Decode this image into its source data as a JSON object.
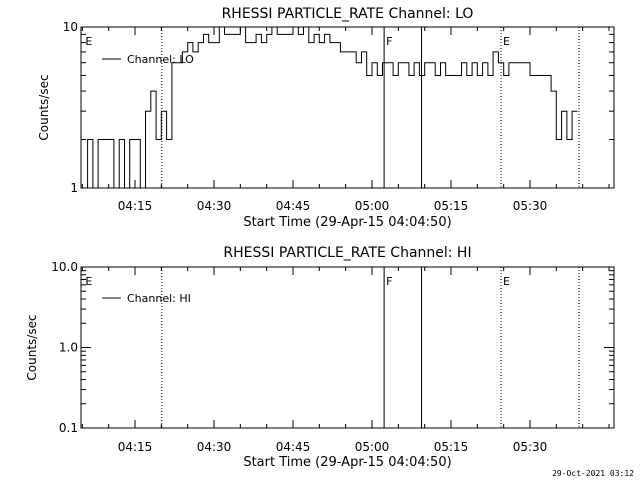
{
  "footer_timestamp": "29-Oct-2021 03:12",
  "chart_data": [
    {
      "type": "line",
      "title": "RHESSI PARTICLE_RATE Channel: LO",
      "xlabel": "Start Time (29-Apr-15 04:04:50)",
      "ylabel": "Counts/sec",
      "yscale": "log",
      "ylim": [
        1,
        10
      ],
      "yticks": [
        1,
        10
      ],
      "ytick_labels": [
        "1",
        "10"
      ],
      "xlim_min": [
        5,
        85
      ],
      "xticks_min": [
        15,
        30,
        45,
        60,
        75,
        90
      ],
      "xtick_labels": [
        "04:15",
        "04:30",
        "04:45",
        "05:00",
        "05:15",
        "05:30"
      ],
      "legend": "Channel: LO",
      "legend_position": "top-left",
      "markers": [
        {
          "t": 5.2,
          "label": "E",
          "style": "none"
        },
        {
          "t": 20.1,
          "label": "",
          "style": "dotted"
        },
        {
          "t": 62.3,
          "label": "F",
          "style": "solid"
        },
        {
          "t": 69.4,
          "label": "",
          "style": "solid"
        },
        {
          "t": 84.5,
          "label": "E",
          "style": "dotted"
        },
        {
          "t": 99.3,
          "label": "",
          "style": "dotted"
        }
      ],
      "series": [
        {
          "name": "Channel: LO",
          "x": [
            5,
            6,
            7,
            8,
            9,
            10,
            11,
            12,
            13,
            14,
            15,
            16,
            17,
            18,
            19,
            20,
            21,
            22,
            23,
            24,
            25,
            26,
            27,
            28,
            29,
            30,
            31,
            32,
            33,
            34,
            35,
            36,
            37,
            38,
            39,
            40,
            41,
            42,
            43,
            44,
            45,
            46,
            47,
            48,
            49,
            50,
            51,
            52,
            53,
            54,
            55,
            56,
            57,
            58,
            59,
            60,
            61,
            62,
            63,
            64,
            65,
            66,
            67,
            68,
            69,
            70,
            71,
            72,
            73,
            74,
            75,
            76,
            77,
            78,
            79,
            80,
            81,
            82,
            83,
            84,
            85,
            86,
            87,
            88,
            89,
            90,
            91,
            92,
            93,
            94,
            95,
            96,
            97,
            98
          ],
          "y": [
            1,
            2,
            1,
            2,
            2,
            2,
            1,
            2,
            1,
            2,
            2,
            1,
            3,
            4,
            2,
            3,
            2,
            6,
            6,
            7,
            8,
            7,
            8,
            9,
            8,
            8,
            10,
            9,
            9,
            9,
            10,
            8,
            8,
            9,
            8,
            9,
            10,
            9,
            9,
            9,
            10,
            9,
            10,
            8,
            9,
            8,
            9,
            8,
            8,
            7,
            7,
            7,
            6,
            7,
            5,
            6,
            5,
            6,
            6,
            5,
            6,
            6,
            5,
            6,
            5,
            6,
            6,
            5,
            6,
            5,
            5,
            5,
            6,
            5,
            6,
            5,
            6,
            5,
            7,
            6,
            5,
            6,
            6,
            6,
            6,
            5,
            5,
            5,
            5,
            4,
            2,
            3,
            2,
            3
          ]
        }
      ]
    },
    {
      "type": "line",
      "title": "RHESSI PARTICLE_RATE Channel: HI",
      "xlabel": "Start Time (29-Apr-15 04:04:50)",
      "ylabel": "Counts/sec",
      "yscale": "log",
      "ylim": [
        0.1,
        10
      ],
      "yticks": [
        0.1,
        1,
        10
      ],
      "ytick_labels": [
        "0.1",
        "1.0",
        "10.0"
      ],
      "xlim_min": [
        5,
        85
      ],
      "xticks_min": [
        15,
        30,
        45,
        60,
        75,
        90
      ],
      "xtick_labels": [
        "04:15",
        "04:30",
        "04:45",
        "05:00",
        "05:15",
        "05:30"
      ],
      "legend": "Channel: HI",
      "legend_position": "top-left",
      "markers": [
        {
          "t": 5.2,
          "label": "E",
          "style": "none"
        },
        {
          "t": 20.1,
          "label": "",
          "style": "dotted"
        },
        {
          "t": 62.3,
          "label": "F",
          "style": "solid"
        },
        {
          "t": 69.4,
          "label": "",
          "style": "solid"
        },
        {
          "t": 84.5,
          "label": "E",
          "style": "dotted"
        },
        {
          "t": 99.3,
          "label": "",
          "style": "dotted"
        }
      ],
      "series": [
        {
          "name": "Channel: HI",
          "x": [],
          "y": []
        }
      ]
    }
  ]
}
